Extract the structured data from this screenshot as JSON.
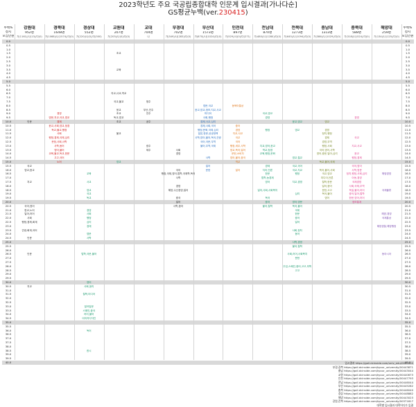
{
  "title": "2023학년도 주요 국공립종합대학 인문계 입시결과[가나다순]",
  "subtitle_prefix": "GS평균누백(ver.",
  "subtitle_version": "230415",
  "subtitle_suffix": ")",
  "left_headers": [
    "누백%",
    "정시",
    "모집인원"
  ],
  "right_headers": [
    "누백%",
    "정시",
    "모집인원"
  ],
  "universities": [
    {
      "name": "강원대",
      "count": "952명",
      "detail": "가(1161)/나(13)/다(0)"
    },
    {
      "name": "경북대",
      "count": "1648명",
      "detail": "가(1068)/나(1574)/다(0)"
    },
    {
      "name": "경상대",
      "count": "552명",
      "detail": "가(220)/나(0)/다(300)"
    },
    {
      "name": "교원대",
      "count": "207명",
      "detail": "가(203)/나(0)/다(0)"
    },
    {
      "name": "교대",
      "count": "704명",
      "detail": "나"
    },
    {
      "name": "부경대",
      "count": "702명",
      "detail": "가(349)/나(283)/다(0)"
    },
    {
      "name": "부산대",
      "count": "1573명",
      "detail": "가(870)/나(1024)/다(0)"
    },
    {
      "name": "인천대",
      "count": "897명",
      "detail": "가(529)/나(0)/다(271)"
    },
    {
      "name": "전남대",
      "count": "870명",
      "detail": "가(480)/나(1280)/다(0)"
    },
    {
      "name": "전북대",
      "count": "1273명",
      "detail": "가(645)/나(1094)/다(0)"
    },
    {
      "name": "충남대",
      "count": "1313명",
      "detail": "가(386)/나(1029)/다(0)"
    },
    {
      "name": "충북대",
      "count": "588명",
      "detail": "가(318)/나(524)/다(0)"
    },
    {
      "name": "해양대",
      "count": "259명",
      "detail": "가(134)/나(125)/다(0)"
    }
  ],
  "grades": [
    "0.0",
    "0.5",
    "1.0",
    "1.5",
    "2.0",
    "2.5",
    "3.0",
    "3.5",
    "4.0",
    "4.5",
    "5.0",
    "5.5",
    "6.0",
    "6.5",
    "7.0",
    "7.5",
    "8.0",
    "8.5",
    "9.0",
    "9.5",
    "10.0",
    "10.5",
    "11.0",
    "11.5",
    "12.0",
    "12.5",
    "13.0",
    "13.5",
    "14.0",
    "14.5",
    "15.0",
    "15.5",
    "16.0",
    "16.5",
    "17.0",
    "17.5",
    "18.0",
    "18.5",
    "19.0",
    "19.5",
    "20.0",
    "20.5",
    "21.0",
    "21.5",
    "22.0",
    "22.5",
    "23.0",
    "23.5",
    "24.0",
    "24.5",
    "25.0",
    "25.5",
    "26.0",
    "26.5",
    "27.0",
    "27.5",
    "28.0",
    "28.5",
    "29.0",
    "29.5",
    "30.0",
    "30.5",
    "31.0",
    "31.5",
    "32.0",
    "32.5",
    "33.0",
    "33.5",
    "34.0",
    "34.5",
    "35.0",
    "35.5",
    "36.0",
    "36.5",
    "37.0",
    "37.5",
    "38.0",
    "38.5",
    "39.0",
    "39.5",
    "40.0"
  ],
  "entries": [
    {
      "col": 4,
      "row": 3,
      "text": "초교",
      "color": "dark"
    },
    {
      "col": 4,
      "row": 7,
      "text": "교육",
      "color": "dark"
    },
    {
      "col": 4,
      "row": 13,
      "text": "지교,사교,역교",
      "color": "dark"
    },
    {
      "col": 4,
      "row": 15,
      "text": "국교,불교",
      "color": "dark"
    },
    {
      "col": 4,
      "row": 17,
      "text": "윤교",
      "color": "dark"
    },
    {
      "col": 4,
      "row": 18,
      "text": "초교",
      "color": "dark"
    },
    {
      "col": 4,
      "row": 19,
      "text": "독교,영교",
      "color": "dark"
    },
    {
      "col": 4,
      "row": 20,
      "text": "초교",
      "color": "dark"
    },
    {
      "col": 5,
      "row": 15,
      "text": "청주",
      "color": "dark"
    },
    {
      "col": 5,
      "row": 17,
      "text": "부산,진주",
      "color": "dark"
    },
    {
      "col": 5,
      "row": 18,
      "text": "전주",
      "color": "dark"
    },
    {
      "col": 5,
      "row": 20,
      "text": "공주",
      "color": "dark"
    },
    {
      "col": 4,
      "row": 23,
      "text": "불교",
      "color": "dark"
    },
    {
      "col": 4,
      "row": 30,
      "text": "영교",
      "color": "green"
    },
    {
      "col": 5,
      "row": 26,
      "text": "광주",
      "color": "dark"
    },
    {
      "col": 5,
      "row": 27,
      "text": "제주",
      "color": "dark"
    },
    {
      "col": 2,
      "row": 18,
      "text": "경영",
      "color": "red"
    },
    {
      "col": 2,
      "row": 19,
      "text": "영문,지교,국교,영교",
      "color": "red"
    },
    {
      "col": 2,
      "row": 20,
      "text": "경제",
      "color": "red"
    },
    {
      "col": 2,
      "row": 21,
      "text": "윤교,사회,영교,정경",
      "color": "red"
    },
    {
      "col": 2,
      "row": 22,
      "text": "독교,불교,행정",
      "color": "red"
    },
    {
      "col": 2,
      "row": 23,
      "text": "사회",
      "color": "red"
    },
    {
      "col": 2,
      "row": 24,
      "text": "행정,경제,국제,심리",
      "color": "red"
    },
    {
      "col": 2,
      "row": 25,
      "text": "문정,사회,사학",
      "color": "red"
    },
    {
      "col": 2,
      "row": 26,
      "text": "사학,동어",
      "color": "red"
    },
    {
      "col": 2,
      "row": 27,
      "text": "영어,불어",
      "color": "red"
    },
    {
      "col": 2,
      "row": 28,
      "text": "교육,불교,독교,한문",
      "color": "red"
    },
    {
      "col": 2,
      "row": 29,
      "text": "고고,국어",
      "color": "red"
    },
    {
      "col": 2,
      "row": 30,
      "text": "노어",
      "color": "red"
    },
    {
      "col": 1,
      "row": 20,
      "text": "인문",
      "color": "dark"
    },
    {
      "col": 1,
      "row": 31,
      "text": "국교",
      "color": "dark"
    },
    {
      "col": 1,
      "row": 32,
      "text": "영교,윤교",
      "color": "dark"
    },
    {
      "col": 1,
      "row": 35,
      "text": "지교",
      "color": "dark"
    },
    {
      "col": 1,
      "row": 41,
      "text": "국어,영어",
      "color": "dark"
    },
    {
      "col": 1,
      "row": 42,
      "text": "한교,노어",
      "color": "dark"
    },
    {
      "col": 1,
      "row": 43,
      "text": "일어,러어",
      "color": "dark"
    },
    {
      "col": 1,
      "row": 44,
      "text": "사회",
      "color": "dark"
    },
    {
      "col": 1,
      "row": 45,
      "text": "행정,경제,회계",
      "color": "dark"
    },
    {
      "col": 1,
      "row": 47,
      "text": "관광,회계,국어",
      "color": "dark"
    },
    {
      "col": 1,
      "row": 49,
      "text": "인문",
      "color": "dark"
    },
    {
      "col": 1,
      "row": 53,
      "text": "인문",
      "color": "dark"
    },
    {
      "col": 1,
      "row": 61,
      "text": "지교",
      "color": "dark"
    },
    {
      "col": 3,
      "row": 33,
      "text": "교육",
      "color": "green"
    },
    {
      "col": 3,
      "row": 35,
      "text": "사교",
      "color": "green"
    },
    {
      "col": 3,
      "row": 37,
      "text": "영교",
      "color": "green"
    },
    {
      "col": 3,
      "row": 38,
      "text": "국교",
      "color": "green"
    },
    {
      "col": 3,
      "row": 39,
      "text": "독교",
      "color": "green"
    },
    {
      "col": 3,
      "row": 42,
      "text": "경영",
      "color": "green"
    },
    {
      "col": 3,
      "row": 43,
      "text": "사회",
      "color": "green"
    },
    {
      "col": 3,
      "row": 44,
      "text": "행정",
      "color": "green"
    },
    {
      "col": 3,
      "row": 45,
      "text": "심리",
      "color": "green"
    },
    {
      "col": 3,
      "row": 46,
      "text": "경제",
      "color": "green"
    },
    {
      "col": 3,
      "row": 48,
      "text": "영문",
      "color": "green"
    },
    {
      "col": 3,
      "row": 49,
      "text": "사학",
      "color": "green"
    },
    {
      "col": 3,
      "row": 53,
      "text": "법학,국문,불어",
      "color": "green"
    },
    {
      "col": 3,
      "row": 60,
      "text": "영어",
      "color": "green"
    },
    {
      "col": 3,
      "row": 61,
      "text": "사회,윤리",
      "color": "green"
    },
    {
      "col": 3,
      "row": 63,
      "text": "철학,미디어",
      "color": "green"
    },
    {
      "col": 3,
      "row": 66,
      "text": "일어일문",
      "color": "green"
    },
    {
      "col": 3,
      "row": 67,
      "text": "스페인,중국",
      "color": "green"
    },
    {
      "col": 3,
      "row": 68,
      "text": "러어,불어",
      "color": "green"
    },
    {
      "col": 3,
      "row": 69,
      "text": "이미지디자인",
      "color": "green"
    },
    {
      "col": 3,
      "row": 72,
      "text": "독어",
      "color": "green"
    },
    {
      "col": 3,
      "row": 77,
      "text": "한시",
      "color": "green"
    },
    {
      "col": 6,
      "row": 27,
      "text": "사회",
      "color": "dark"
    },
    {
      "col": 6,
      "row": 28,
      "text": "경영",
      "color": "dark"
    },
    {
      "col": 6,
      "row": 32,
      "text": "국어",
      "color": "dark"
    },
    {
      "col": 6,
      "row": 33,
      "text": "행정,국제,영어,법학,국제학,독어",
      "color": "dark"
    },
    {
      "col": 6,
      "row": 34,
      "text": "사학",
      "color": "dark"
    },
    {
      "col": 6,
      "row": 36,
      "text": "경영",
      "color": "dark"
    },
    {
      "col": 6,
      "row": 37,
      "text": "해양,수산경영,일어",
      "color": "dark"
    },
    {
      "col": 6,
      "row": 39,
      "text": "중국",
      "color": "dark"
    },
    {
      "col": 6,
      "row": 40,
      "text": "일어",
      "color": "dark"
    },
    {
      "col": 6,
      "row": 41,
      "text": "사학,중어",
      "color": "dark"
    },
    {
      "col": 7,
      "row": 16,
      "text": "영문,국교",
      "color": "blue"
    },
    {
      "col": 7,
      "row": 17,
      "text": "윤교,영교,정보,지교,사교",
      "color": "blue"
    },
    {
      "col": 7,
      "row": 18,
      "text": "미디어",
      "color": "blue"
    },
    {
      "col": 7,
      "row": 19,
      "text": "사회,행정",
      "color": "blue"
    },
    {
      "col": 7,
      "row": 20,
      "text": "경제,사교,심리",
      "color": "blue"
    },
    {
      "col": 7,
      "row": 21,
      "text": "경제,사회,국어",
      "color": "blue"
    },
    {
      "col": 7,
      "row": 22,
      "text": "행정,문화,국제,심리",
      "color": "blue"
    },
    {
      "col": 7,
      "row": 23,
      "text": "일본,한문,공공정책",
      "color": "blue"
    },
    {
      "col": 7,
      "row": 24,
      "text": "사학,영어,불어,독어,관광",
      "color": "blue"
    },
    {
      "col": 7,
      "row": 25,
      "text": "국어,국문,무역",
      "color": "blue"
    },
    {
      "col": 7,
      "row": 26,
      "text": "불어,무역,국제",
      "color": "blue"
    },
    {
      "col": 7,
      "row": 29,
      "text": "사학",
      "color": "blue"
    },
    {
      "col": 7,
      "row": 31,
      "text": "일어",
      "color": "blue"
    },
    {
      "col": 7,
      "row": 32,
      "text": "문헌",
      "color": "blue"
    },
    {
      "col": 8,
      "row": 16,
      "text": "동북아통상",
      "color": "orange"
    },
    {
      "col": 8,
      "row": 21,
      "text": "중어",
      "color": "orange"
    },
    {
      "col": 8,
      "row": 22,
      "text": "경영",
      "color": "orange"
    },
    {
      "col": 8,
      "row": 23,
      "text": "지교,사교",
      "color": "orange"
    },
    {
      "col": 8,
      "row": 24,
      "text": "국교",
      "color": "orange"
    },
    {
      "col": 8,
      "row": 25,
      "text": "국어",
      "color": "orange"
    },
    {
      "col": 8,
      "row": 26,
      "text": "행정,세무,사학",
      "color": "orange"
    },
    {
      "col": 8,
      "row": 27,
      "text": "영교,독어,일어",
      "color": "orange"
    },
    {
      "col": 8,
      "row": 28,
      "text": "문헌,소비자",
      "color": "orange"
    },
    {
      "col": 8,
      "row": 29,
      "text": "영어,불어,중국",
      "color": "orange"
    },
    {
      "col": 8,
      "row": 30,
      "text": "역교",
      "color": "orange"
    },
    {
      "col": 8,
      "row": 32,
      "text": "일어",
      "color": "orange"
    },
    {
      "col": 9,
      "row": 18,
      "text": "국교,영교",
      "color": "green"
    },
    {
      "col": 9,
      "row": 19,
      "text": "경영",
      "color": "green"
    },
    {
      "col": 9,
      "row": 22,
      "text": "행정",
      "color": "green"
    },
    {
      "col": 9,
      "row": 26,
      "text": "지교,영어,윤교",
      "color": "green"
    },
    {
      "col": 9,
      "row": 27,
      "text": "역교,정경",
      "color": "green"
    },
    {
      "col": 9,
      "row": 28,
      "text": "교육,행정,문화",
      "color": "green"
    },
    {
      "col": 9,
      "row": 31,
      "text": "경제",
      "color": "green"
    },
    {
      "col": 9,
      "row": 32,
      "text": "지리,언론",
      "color": "green"
    },
    {
      "col": 9,
      "row": 33,
      "text": "한문",
      "color": "green"
    },
    {
      "col": 9,
      "row": 34,
      "text": "법학,농경제",
      "color": "green"
    },
    {
      "col": 9,
      "row": 35,
      "text": "영어",
      "color": "green"
    },
    {
      "col": 9,
      "row": 37,
      "text": "일어,사회,사회복지",
      "color": "green"
    },
    {
      "col": 9,
      "row": 39,
      "text": "독어",
      "color": "green"
    },
    {
      "col": 9,
      "row": 40,
      "text": "중어",
      "color": "green"
    },
    {
      "col": 9,
      "row": 41,
      "text": "불어,철학",
      "color": "green"
    },
    {
      "col": 10,
      "row": 20,
      "text": "윤교,영교",
      "color": "green"
    },
    {
      "col": 10,
      "row": 22,
      "text": "영교",
      "color": "green"
    },
    {
      "col": 10,
      "row": 29,
      "text": "영교,철교",
      "color": "green"
    },
    {
      "col": 10,
      "row": 31,
      "text": "국교,국어",
      "color": "green"
    },
    {
      "col": 10,
      "row": 32,
      "text": "국교,지교",
      "color": "green"
    },
    {
      "col": 10,
      "row": 33,
      "text": "행정",
      "color": "green"
    },
    {
      "col": 10,
      "row": 35,
      "text": "지교,경영",
      "color": "green"
    },
    {
      "col": 10,
      "row": 38,
      "text": "심리",
      "color": "green"
    },
    {
      "col": 10,
      "row": 40,
      "text": "영어,영문",
      "color": "green"
    },
    {
      "col": 10,
      "row": 41,
      "text": "독어,불어",
      "color": "green"
    },
    {
      "col": 10,
      "row": 42,
      "text": "국제",
      "color": "green"
    },
    {
      "col": 10,
      "row": 43,
      "text": "한문",
      "color": "green"
    },
    {
      "col": 10,
      "row": 44,
      "text": "중어",
      "color": "green"
    },
    {
      "col": 10,
      "row": 45,
      "text": "일어",
      "color": "green"
    },
    {
      "col": 10,
      "row": 47,
      "text": "사회,정치",
      "color": "green"
    },
    {
      "col": 10,
      "row": 48,
      "text": "동어",
      "color": "green"
    },
    {
      "col": 10,
      "row": 50,
      "text": "사학,경영",
      "color": "green"
    },
    {
      "col": 10,
      "row": 51,
      "text": "불어,철학",
      "color": "green"
    },
    {
      "col": 10,
      "row": 53,
      "text": "사회,러어,사회복지",
      "color": "green"
    },
    {
      "col": 10,
      "row": 54,
      "text": "문헌",
      "color": "green"
    },
    {
      "col": 10,
      "row": 56,
      "text": "주임,스페인,중어,고고,미학",
      "color": "green"
    },
    {
      "col": 10,
      "row": 57,
      "text": "고고",
      "color": "green"
    },
    {
      "col": 11,
      "row": 20,
      "text": "영교",
      "color": "olive"
    },
    {
      "col": 11,
      "row": 22,
      "text": "경영",
      "color": "olive"
    },
    {
      "col": 11,
      "row": 23,
      "text": "정치,행정",
      "color": "olive"
    },
    {
      "col": 11,
      "row": 24,
      "text": "경제",
      "color": "olive"
    },
    {
      "col": 11,
      "row": 25,
      "text": "경영,무역",
      "color": "olive"
    },
    {
      "col": 11,
      "row": 26,
      "text": "행정,사회",
      "color": "olive"
    },
    {
      "col": 11,
      "row": 27,
      "text": "국어,영어,사학",
      "color": "olive"
    },
    {
      "col": 11,
      "row": 28,
      "text": "영어,중문,일어,심리",
      "color": "olive"
    },
    {
      "col": 11,
      "row": 30,
      "text": "독교,불어,국제",
      "color": "olive"
    },
    {
      "col": 11,
      "row": 32,
      "text": "독어,불어,사회",
      "color": "olive"
    },
    {
      "col": 11,
      "row": 33,
      "text": "국교,영교",
      "color": "olive"
    },
    {
      "col": 11,
      "row": 34,
      "text": "미디어,언론",
      "color": "olive"
    },
    {
      "col": 11,
      "row": 35,
      "text": "철학,한문",
      "color": "olive"
    },
    {
      "col": 11,
      "row": 36,
      "text": "일어,중어",
      "color": "olive"
    },
    {
      "col": 11,
      "row": 37,
      "text": "문헌,고고",
      "color": "olive"
    },
    {
      "col": 11,
      "row": 38,
      "text": "독어,불어",
      "color": "olive"
    },
    {
      "col": 11,
      "row": 39,
      "text": "영어",
      "color": "olive"
    },
    {
      "col": 12,
      "row": 19,
      "text": "경영",
      "color": "pink"
    },
    {
      "col": 12,
      "row": 24,
      "text": "국교",
      "color": "pink"
    },
    {
      "col": 12,
      "row": 26,
      "text": "지교,사교",
      "color": "pink"
    },
    {
      "col": 12,
      "row": 28,
      "text": "윤교",
      "color": "pink"
    },
    {
      "col": 12,
      "row": 29,
      "text": "행정,경제",
      "color": "pink"
    },
    {
      "col": 12,
      "row": 31,
      "text": "국어,영어",
      "color": "pink"
    },
    {
      "col": 12,
      "row": 32,
      "text": "사학,영문",
      "color": "pink"
    },
    {
      "col": 12,
      "row": 33,
      "text": "정치,행정,사회,심리",
      "color": "pink"
    },
    {
      "col": 12,
      "row": 34,
      "text": "아동,경영",
      "color": "pink"
    },
    {
      "col": 12,
      "row": 35,
      "text": "국제경영",
      "color": "pink"
    },
    {
      "col": 12,
      "row": 36,
      "text": "사회,국제,무역",
      "color": "pink"
    },
    {
      "col": 12,
      "row": 37,
      "text": "독일,불어,러어",
      "color": "pink"
    },
    {
      "col": 12,
      "row": 38,
      "text": "중어,일어,철학",
      "color": "pink"
    },
    {
      "col": 12,
      "row": 39,
      "text": "한문,영어,러어",
      "color": "pink"
    },
    {
      "col": 12,
      "row": 40,
      "text": "정보통계",
      "color": "pink"
    },
    {
      "col": 13,
      "row": 33,
      "text": "해양경영",
      "color": "purple"
    },
    {
      "col": 13,
      "row": 37,
      "text": "국제물류",
      "color": "purple"
    },
    {
      "col": 13,
      "row": 43,
      "text": "해양,경영",
      "color": "purple"
    },
    {
      "col": 13,
      "row": 44,
      "text": "국제통상",
      "color": "purple"
    },
    {
      "col": 13,
      "row": 46,
      "text": "해양경찰,해양행정",
      "color": "purple"
    },
    {
      "col": 13,
      "row": 53,
      "text": "동아시아",
      "color": "purple"
    }
  ],
  "footer": [
    "입시결과 https://gall.dcinside.com/univ_edu/0000000",
    "부경,경북 https://gall.dcinside.com/kyour_university/00443871",
    "충남 https://gall.dcinside.com/kyour_university/00443044",
    "교원 https://gall.dcinside.com/kyour_university/00440673",
    "인천 https://gall.dcinside.com/kyour_university/00447793",
    "전남 https://gall.dcinside.com/kyour_university/00446044",
    "부산 https://gall.dcinside.com/kyour_university/00445282",
    "충북 https://gall.dcinside.com/kyour_university/00446040",
    "경상 https://gall.dcinside.com/kyour_university/00448882",
    "해양 https://gall.dcinside.com/kyour_university/00443023",
    "강원,전북 https://gall.dcinside.com/kyour_university/00371817",
    "대학별 입시결과 대학어디가 입결"
  ]
}
